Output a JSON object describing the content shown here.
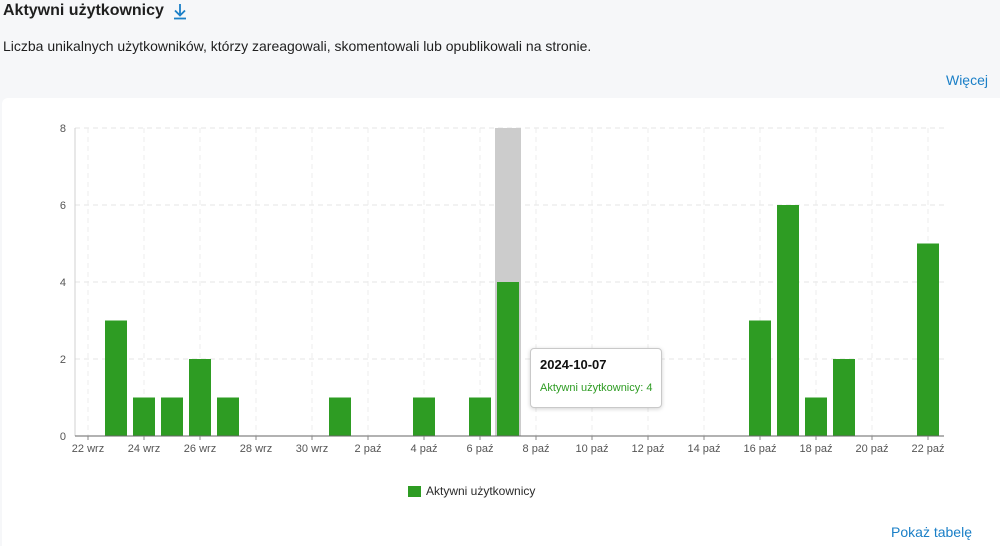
{
  "header": {
    "title": "Aktywni użytkownicy",
    "download_icon": "download-arrow-icon",
    "subtitle": "Liczba unikalnych użytkowników, którzy zareagowali, skomentowali lub opublikowali na stronie.",
    "more_label": "Więcej"
  },
  "footer": {
    "show_table_label": "Pokaż tabelę"
  },
  "tooltip": {
    "date": "2024-10-07",
    "label": "Aktywni użytkownicy: 4"
  },
  "colors": {
    "bar": "#2e9c23",
    "highlight": "#cccccc",
    "link": "#1a7fc7"
  },
  "chart_data": {
    "type": "bar",
    "x": [
      "2024-09-22",
      "2024-09-23",
      "2024-09-24",
      "2024-09-25",
      "2024-09-26",
      "2024-09-27",
      "2024-09-28",
      "2024-09-29",
      "2024-09-30",
      "2024-10-01",
      "2024-10-02",
      "2024-10-03",
      "2024-10-04",
      "2024-10-05",
      "2024-10-06",
      "2024-10-07",
      "2024-10-08",
      "2024-10-09",
      "2024-10-10",
      "2024-10-11",
      "2024-10-12",
      "2024-10-13",
      "2024-10-14",
      "2024-10-15",
      "2024-10-16",
      "2024-10-17",
      "2024-10-18",
      "2024-10-19",
      "2024-10-20",
      "2024-10-21",
      "2024-10-22"
    ],
    "series": [
      {
        "name": "Aktywni użytkownicy",
        "values": [
          0,
          3,
          1,
          1,
          2,
          1,
          0,
          0,
          0,
          1,
          0,
          0,
          1,
          0,
          1,
          4,
          0,
          0,
          0,
          0,
          0,
          0,
          0,
          0,
          3,
          6,
          1,
          2,
          0,
          0,
          5
        ]
      }
    ],
    "x_tick_labels": [
      "22 wrz",
      "24 wrz",
      "26 wrz",
      "28 wrz",
      "30 wrz",
      "2 paź",
      "4 paź",
      "6 paź",
      "8 paź",
      "10 paź",
      "12 paź",
      "14 paź",
      "16 paź",
      "18 paź",
      "20 paź",
      "22 paź"
    ],
    "y_ticks": [
      0,
      2,
      4,
      6,
      8
    ],
    "ylim": [
      0,
      8
    ],
    "highlighted": "2024-10-07",
    "grid": true,
    "legend": "bottom-center"
  }
}
